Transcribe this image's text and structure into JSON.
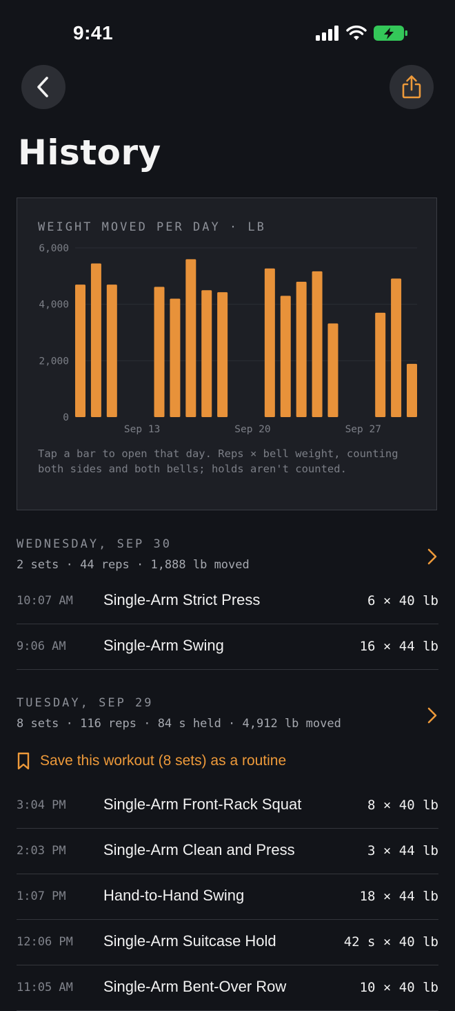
{
  "status_bar": {
    "time": "9:41"
  },
  "nav": {
    "back_icon": "chevron-left-icon",
    "share_icon": "share-icon"
  },
  "page_title": "History",
  "colors": {
    "accent": "#ee9a3a",
    "bar": "#e8923a",
    "background": "#121419",
    "card": "#1d1f25"
  },
  "chart_data": {
    "type": "bar",
    "title": "WEIGHT MOVED PER DAY · LB",
    "y_ticks": [
      "6,000",
      "4,000",
      "2,000",
      "0"
    ],
    "ylim": [
      0,
      6000
    ],
    "x_tick_labels": [
      {
        "label": "Sep 13",
        "day": 13
      },
      {
        "label": "Sep 20",
        "day": 20
      },
      {
        "label": "Sep 27",
        "day": 27
      }
    ],
    "x_range_days": [
      9,
      30
    ],
    "bars": [
      {
        "day": 9,
        "value": 4700
      },
      {
        "day": 10,
        "value": 5450
      },
      {
        "day": 11,
        "value": 4700
      },
      {
        "day": 14,
        "value": 4620
      },
      {
        "day": 15,
        "value": 4200
      },
      {
        "day": 16,
        "value": 5600
      },
      {
        "day": 17,
        "value": 4500
      },
      {
        "day": 18,
        "value": 4430
      },
      {
        "day": 21,
        "value": 5270
      },
      {
        "day": 22,
        "value": 4300
      },
      {
        "day": 23,
        "value": 4800
      },
      {
        "day": 24,
        "value": 5170
      },
      {
        "day": 25,
        "value": 3320
      },
      {
        "day": 28,
        "value": 3700
      },
      {
        "day": 29,
        "value": 4912
      },
      {
        "day": 30,
        "value": 1888
      }
    ],
    "grid": true,
    "legend": "none"
  },
  "chart_note": "Tap a bar to open that day. Reps × bell weight, counting both sides and both bells; holds aren't counted.",
  "days": [
    {
      "title": "WEDNESDAY, SEP 30",
      "summary": "2 sets · 44 reps · 1,888 lb moved",
      "sets": [
        {
          "time": "10:07 AM",
          "name": "Single-Arm Strict Press",
          "value": "6 × 40 lb"
        },
        {
          "time": "9:06 AM",
          "name": "Single-Arm Swing",
          "value": "16 × 44 lb"
        }
      ]
    },
    {
      "title": "TUESDAY, SEP 29",
      "summary": "8 sets · 116 reps · 84 s held · 4,912 lb moved",
      "save_routine": "Save this workout (8 sets) as a routine",
      "sets": [
        {
          "time": "3:04 PM",
          "name": "Single-Arm Front-Rack Squat",
          "value": "8 × 40 lb"
        },
        {
          "time": "2:03 PM",
          "name": "Single-Arm Clean and Press",
          "value": "3 × 44 lb"
        },
        {
          "time": "1:07 PM",
          "name": "Hand-to-Hand Swing",
          "value": "18 × 44 lb"
        },
        {
          "time": "12:06 PM",
          "name": "Single-Arm Suitcase Hold",
          "value": "42 s × 40 lb"
        },
        {
          "time": "11:05 AM",
          "name": "Single-Arm Bent-Over Row",
          "value": "10 × 40 lb"
        }
      ]
    }
  ]
}
